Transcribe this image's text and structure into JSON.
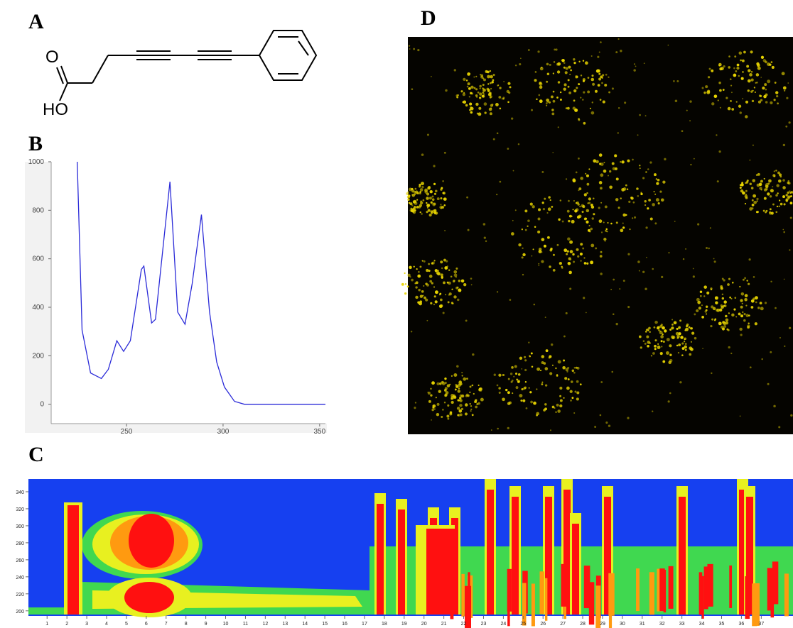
{
  "panel_labels": [
    "A",
    "B",
    "C",
    "D"
  ],
  "structure": {
    "atoms": [
      "O",
      "HO"
    ]
  },
  "chart_data": [
    {
      "type": "line",
      "color": "#2b2bd8",
      "x": [
        224.5,
        227,
        231.4,
        237,
        240.6,
        245,
        248.5,
        252,
        257.7,
        259,
        263,
        265,
        272.5,
        276.5,
        280.3,
        284,
        288.8,
        293,
        296.7,
        300.7,
        305.9,
        311,
        353
      ],
      "values": [
        1000,
        306,
        129,
        106,
        144,
        262,
        218,
        262,
        556,
        570,
        335,
        350,
        918,
        380,
        330,
        497,
        782,
        380,
        174,
        71,
        12,
        0,
        0
      ],
      "xlim": [
        211,
        353
      ],
      "xticks": [
        250,
        300,
        350
      ],
      "ylim": [
        -80,
        1000
      ],
      "yticks": [
        0,
        200,
        400,
        600,
        800,
        1000
      ]
    },
    {
      "type": "heatmap",
      "xlim": [
        0.06,
        38.6
      ],
      "xticks": [
        1,
        2,
        3,
        4,
        5,
        6,
        7,
        8,
        9,
        10,
        11,
        12,
        13,
        14,
        15,
        16,
        17,
        18,
        19,
        20,
        21,
        22,
        23,
        24,
        25,
        26,
        27,
        28,
        29,
        30,
        31,
        32,
        33,
        34,
        35,
        36,
        37
      ],
      "ylim": [
        194,
        355
      ],
      "yticks": [
        200,
        220,
        240,
        260,
        280,
        300,
        320,
        340
      ]
    }
  ]
}
